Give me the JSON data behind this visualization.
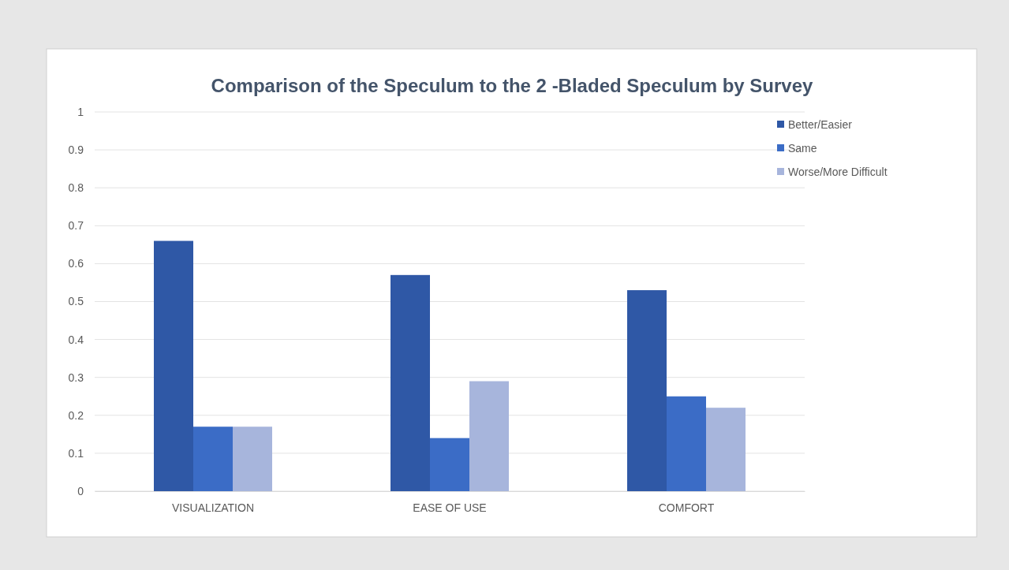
{
  "chart_data": {
    "type": "bar",
    "title": "Comparison of the Speculum to the 2 -Bladed Speculum by Survey",
    "categories": [
      "VISUALIZATION",
      "EASE OF USE",
      "COMFORT"
    ],
    "series": [
      {
        "name": "Better/Easier",
        "color": "#2f58a6",
        "values": [
          0.66,
          0.57,
          0.53
        ]
      },
      {
        "name": "Same",
        "color": "#3b6cc6",
        "values": [
          0.17,
          0.14,
          0.25
        ]
      },
      {
        "name": "Worse/More Difficult",
        "color": "#a7b5dc",
        "values": [
          0.17,
          0.29,
          0.22
        ]
      }
    ],
    "ylim": [
      0,
      1
    ],
    "yticks": [
      0,
      0.1,
      0.2,
      0.3,
      0.4,
      0.5,
      0.6,
      0.7,
      0.8,
      0.9,
      1
    ],
    "grid": "y",
    "legend": "top right"
  }
}
